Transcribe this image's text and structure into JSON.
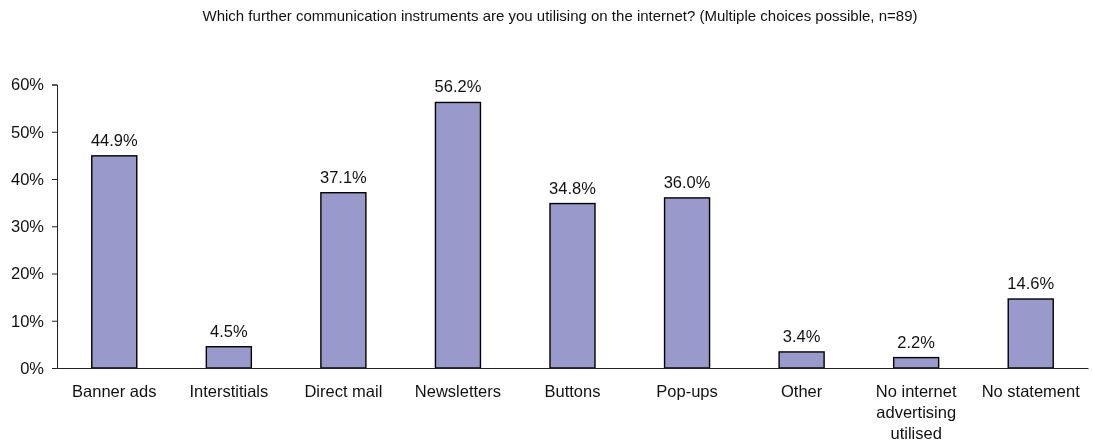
{
  "chart_data": {
    "type": "bar",
    "title": "Which further communication instruments are you utilising on the internet? (Multiple choices possible, n=89)",
    "categories": [
      "Banner ads",
      "Interstitials",
      "Direct mail",
      "Newsletters",
      "Buttons",
      "Pop-ups",
      "Other",
      "No internet advertising utilised",
      "No statement"
    ],
    "values": [
      44.9,
      4.5,
      37.1,
      56.2,
      34.8,
      36.0,
      3.4,
      2.2,
      14.6
    ],
    "value_labels": [
      "44.9%",
      "4.5%",
      "37.1%",
      "56.2%",
      "34.8%",
      "36.0%",
      "3.4%",
      "2.2%",
      "14.6%"
    ],
    "color": "#9999cc",
    "ylim": [
      0,
      60
    ],
    "yticks": [
      {
        "value": 0,
        "label": "0%"
      },
      {
        "value": 10,
        "label": "10%"
      },
      {
        "value": 20,
        "label": "20%"
      },
      {
        "value": 30,
        "label": "30%"
      },
      {
        "value": 40,
        "label": "40%"
      },
      {
        "value": 50,
        "label": "50%"
      },
      {
        "value": 60,
        "label": "60%"
      }
    ]
  }
}
